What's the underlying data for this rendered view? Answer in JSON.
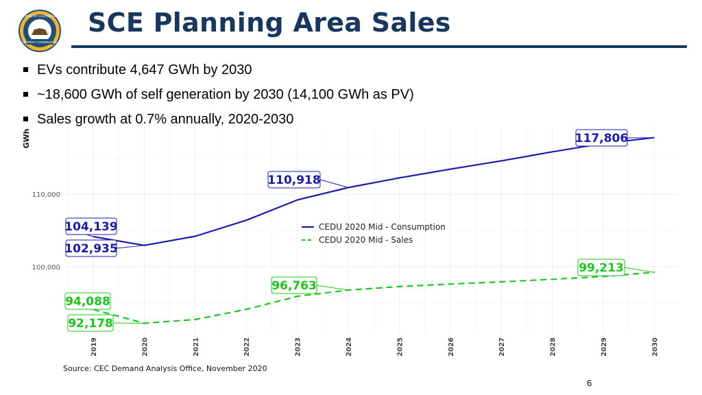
{
  "slide": {
    "title": "SCE Planning Area Sales",
    "bullets": [
      "EVs contribute 4,647 GWh by 2030",
      "~18,600 GWh of self generation by 2030 (14,100 GWh as PV)",
      "Sales growth at 0.7% annually, 2020-2030"
    ],
    "source": "Source: CEC Demand Analysis Office, November 2020",
    "page_number": "6",
    "logo": {
      "top_text": "STATE OF CALIFORNIA",
      "bottom_text": "ENERGY COMMISSION"
    }
  },
  "colors": {
    "title": "#17375e",
    "consumption": "#1a1ab0",
    "sales": "#19c819",
    "grid": "#ececec"
  },
  "chart_data": {
    "type": "line",
    "title": "",
    "xlabel": "",
    "ylabel": "GWh",
    "x": [
      2019,
      2020,
      2021,
      2022,
      2023,
      2024,
      2025,
      2026,
      2027,
      2028,
      2029,
      2030
    ],
    "ylim": [
      90800,
      119200
    ],
    "yticks": [
      100000,
      110000
    ],
    "ytick_labels": [
      "100,000",
      "110,000"
    ],
    "legend_position": "center",
    "series": [
      {
        "name": "CEDU 2020 Mid - Consumption",
        "style": "solid",
        "values": [
          104139,
          102935,
          104200,
          106400,
          109200,
          110918,
          112250,
          113450,
          114600,
          115850,
          117000,
          117806
        ]
      },
      {
        "name": "CEDU 2020 Mid - Sales",
        "style": "dashed",
        "values": [
          94088,
          92178,
          92700,
          94100,
          95900,
          96763,
          97250,
          97600,
          97900,
          98250,
          98650,
          99213
        ]
      }
    ],
    "annotations": [
      {
        "label": "117,806",
        "series": 0,
        "year": 2030
      },
      {
        "label": "110,918",
        "series": 0,
        "year": 2024
      },
      {
        "label": "104,139",
        "series": 0,
        "year": 2019
      },
      {
        "label": "102,935",
        "series": 0,
        "year": 2020
      },
      {
        "label": "99,213",
        "series": 1,
        "year": 2030
      },
      {
        "label": "96,763",
        "series": 1,
        "year": 2024
      },
      {
        "label": "94,088",
        "series": 1,
        "year": 2019
      },
      {
        "label": "92,178",
        "series": 1,
        "year": 2020
      }
    ]
  }
}
